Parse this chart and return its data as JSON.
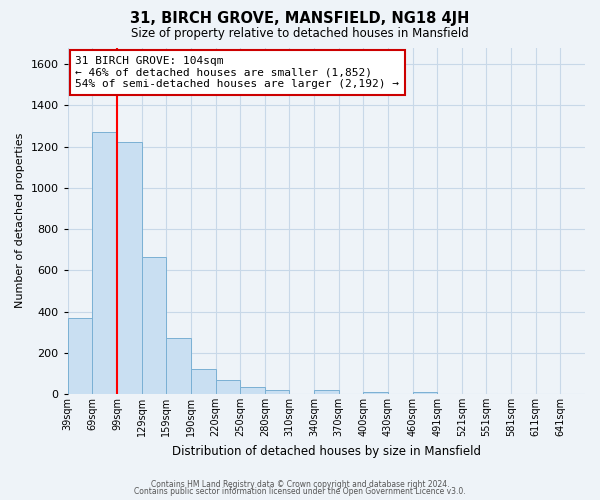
{
  "title": "31, BIRCH GROVE, MANSFIELD, NG18 4JH",
  "subtitle": "Size of property relative to detached houses in Mansfield",
  "xlabel": "Distribution of detached houses by size in Mansfield",
  "ylabel": "Number of detached properties",
  "bar_values": [
    370,
    1270,
    1220,
    665,
    270,
    120,
    70,
    35,
    20,
    0,
    18,
    0,
    10,
    0,
    10,
    0,
    0,
    0,
    0,
    0,
    0
  ],
  "bar_labels": [
    "39sqm",
    "69sqm",
    "99sqm",
    "129sqm",
    "159sqm",
    "190sqm",
    "220sqm",
    "250sqm",
    "280sqm",
    "310sqm",
    "340sqm",
    "370sqm",
    "400sqm",
    "430sqm",
    "460sqm",
    "491sqm",
    "521sqm",
    "551sqm",
    "581sqm",
    "611sqm",
    "641sqm"
  ],
  "bar_color": "#c9dff2",
  "bar_edge_color": "#7ab0d4",
  "red_line_x": 2,
  "property_line": "31 BIRCH GROVE: 104sqm",
  "annotation_line1": "← 46% of detached houses are smaller (1,852)",
  "annotation_line2": "54% of semi-detached houses are larger (2,192) →",
  "annotation_box_color": "#ffffff",
  "annotation_box_edge": "#cc0000",
  "ylim": [
    0,
    1680
  ],
  "yticks": [
    0,
    200,
    400,
    600,
    800,
    1000,
    1200,
    1400,
    1600
  ],
  "grid_color": "#c8d8e8",
  "footer1": "Contains HM Land Registry data © Crown copyright and database right 2024.",
  "footer2": "Contains public sector information licensed under the Open Government Licence v3.0.",
  "bg_color": "#eef3f8",
  "plot_bg_color": "#eef3f8"
}
